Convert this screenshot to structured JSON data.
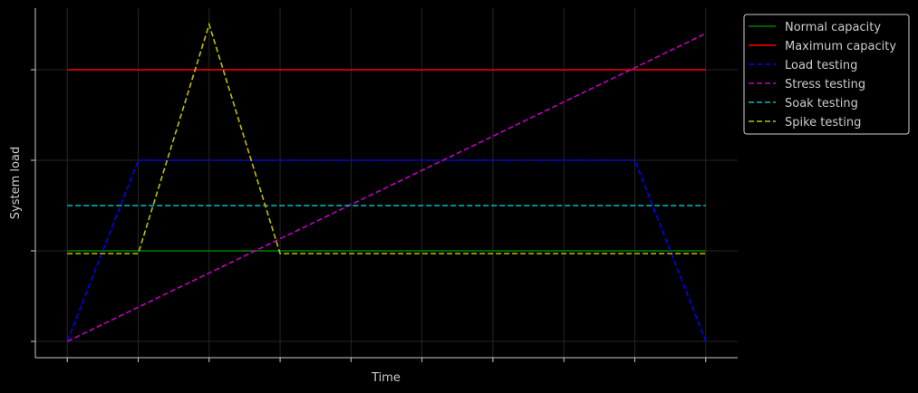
{
  "chart_data": {
    "type": "line",
    "title": "",
    "xlabel": "Time",
    "ylabel": "System load",
    "xlim": [
      -0.45,
      9.45
    ],
    "ylim": [
      -0.18,
      3.68
    ],
    "x_ticks": [
      0,
      1,
      2,
      3,
      4,
      5,
      6,
      7,
      8,
      9
    ],
    "y_ticks": [
      0,
      1,
      2,
      3
    ],
    "tick_labels_shown": false,
    "grid": true,
    "legend_position": "outside-top-right",
    "series": [
      {
        "name": "Normal capacity",
        "color": "#008000",
        "style": "solid",
        "x": [
          0,
          9
        ],
        "y": [
          1.0,
          1.0
        ]
      },
      {
        "name": "Maximum capacity",
        "color": "#ff0000",
        "style": "solid",
        "x": [
          0,
          9
        ],
        "y": [
          3.0,
          3.0
        ]
      },
      {
        "name": "Load testing",
        "color": "#0000ff",
        "style": "dashed",
        "x": [
          0,
          1,
          8,
          9
        ],
        "y": [
          0.0,
          2.0,
          2.0,
          0.0
        ]
      },
      {
        "name": "Stress testing",
        "color": "#bf00bf",
        "style": "dashed",
        "x": [
          0,
          9
        ],
        "y": [
          0.0,
          3.4
        ]
      },
      {
        "name": "Soak testing",
        "color": "#00bfbf",
        "style": "dashed",
        "x": [
          0,
          9
        ],
        "y": [
          1.5,
          1.5
        ]
      },
      {
        "name": "Spike testing",
        "color": "#bfbf00",
        "style": "dashed",
        "x": [
          0,
          1,
          2,
          3,
          9
        ],
        "y": [
          0.97,
          0.97,
          3.5,
          0.97,
          0.97
        ]
      }
    ]
  }
}
